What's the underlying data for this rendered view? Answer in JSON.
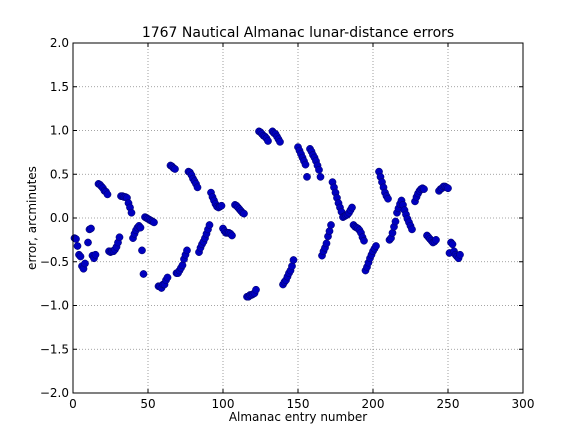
{
  "chart_data": {
    "type": "scatter",
    "title": "1767 Nautical Almanac lunar-distance errors",
    "xlabel": "Almanac entry number",
    "ylabel": "error, arcminutes",
    "xlim": [
      0,
      300
    ],
    "ylim": [
      -2.0,
      2.0
    ],
    "xticks": [
      0,
      50,
      100,
      150,
      200,
      250,
      300
    ],
    "xtick_labels": [
      "0",
      "50",
      "100",
      "150",
      "200",
      "250",
      "300"
    ],
    "yticks": [
      -2.0,
      -1.5,
      -1.0,
      -0.5,
      0.0,
      0.5,
      1.0,
      1.5,
      2.0
    ],
    "ytick_labels": [
      "−2.0",
      "−1.5",
      "−1.0",
      "−0.5",
      "0.0",
      "0.5",
      "1.0",
      "1.5",
      "2.0"
    ],
    "grid": true,
    "marker_color": "#0000bf",
    "points": [
      [
        1,
        -0.23
      ],
      [
        2,
        -0.24
      ],
      [
        3,
        -0.32
      ],
      [
        4,
        -0.42
      ],
      [
        5,
        -0.44
      ],
      [
        6,
        -0.55
      ],
      [
        7,
        -0.58
      ],
      [
        8,
        -0.52
      ],
      [
        10,
        -0.28
      ],
      [
        11,
        -0.13
      ],
      [
        12,
        -0.12
      ],
      [
        13,
        -0.43
      ],
      [
        14,
        -0.46
      ],
      [
        15,
        -0.42
      ],
      [
        17,
        0.39
      ],
      [
        18,
        0.38
      ],
      [
        19,
        0.36
      ],
      [
        20,
        0.34
      ],
      [
        21,
        0.31
      ],
      [
        22,
        0.3
      ],
      [
        23,
        0.27
      ],
      [
        24,
        -0.38
      ],
      [
        25,
        -0.39
      ],
      [
        26,
        -0.38
      ],
      [
        27,
        -0.38
      ],
      [
        28,
        -0.36
      ],
      [
        29,
        -0.33
      ],
      [
        30,
        -0.28
      ],
      [
        31,
        -0.22
      ],
      [
        32,
        0.25
      ],
      [
        33,
        0.25
      ],
      [
        34,
        0.24
      ],
      [
        35,
        0.24
      ],
      [
        36,
        0.23
      ],
      [
        37,
        0.17
      ],
      [
        38,
        0.12
      ],
      [
        39,
        0.06
      ],
      [
        40,
        -0.23
      ],
      [
        41,
        -0.18
      ],
      [
        42,
        -0.14
      ],
      [
        43,
        -0.11
      ],
      [
        44,
        -0.09
      ],
      [
        45,
        -0.11
      ],
      [
        46,
        -0.37
      ],
      [
        47,
        -0.64
      ],
      [
        48,
        0.01
      ],
      [
        49,
        0.0
      ],
      [
        50,
        -0.01
      ],
      [
        51,
        -0.02
      ],
      [
        52,
        -0.03
      ],
      [
        53,
        -0.04
      ],
      [
        54,
        -0.05
      ],
      [
        57,
        -0.78
      ],
      [
        58,
        -0.78
      ],
      [
        59,
        -0.8
      ],
      [
        60,
        -0.76
      ],
      [
        61,
        -0.76
      ],
      [
        62,
        -0.71
      ],
      [
        63,
        -0.68
      ],
      [
        65,
        0.6
      ],
      [
        66,
        0.59
      ],
      [
        67,
        0.57
      ],
      [
        68,
        0.56
      ],
      [
        69,
        -0.63
      ],
      [
        70,
        -0.63
      ],
      [
        71,
        -0.6
      ],
      [
        72,
        -0.57
      ],
      [
        73,
        -0.54
      ],
      [
        74,
        -0.47
      ],
      [
        75,
        -0.42
      ],
      [
        76,
        -0.37
      ],
      [
        77,
        0.53
      ],
      [
        78,
        0.52
      ],
      [
        79,
        0.49
      ],
      [
        80,
        0.45
      ],
      [
        81,
        0.42
      ],
      [
        82,
        0.39
      ],
      [
        83,
        0.35
      ],
      [
        84,
        -0.39
      ],
      [
        85,
        -0.34
      ],
      [
        86,
        -0.3
      ],
      [
        87,
        -0.27
      ],
      [
        88,
        -0.23
      ],
      [
        89,
        -0.18
      ],
      [
        90,
        -0.13
      ],
      [
        91,
        -0.08
      ],
      [
        92,
        0.29
      ],
      [
        93,
        0.24
      ],
      [
        94,
        0.2
      ],
      [
        95,
        0.16
      ],
      [
        96,
        0.13
      ],
      [
        97,
        0.12
      ],
      [
        98,
        0.13
      ],
      [
        99,
        0.14
      ],
      [
        100,
        -0.12
      ],
      [
        101,
        -0.15
      ],
      [
        102,
        -0.17
      ],
      [
        103,
        -0.17
      ],
      [
        104,
        -0.17
      ],
      [
        105,
        -0.18
      ],
      [
        106,
        -0.2
      ],
      [
        108,
        0.15
      ],
      [
        109,
        0.14
      ],
      [
        110,
        0.12
      ],
      [
        111,
        0.1
      ],
      [
        112,
        0.08
      ],
      [
        113,
        0.06
      ],
      [
        114,
        0.05
      ],
      [
        116,
        -0.9
      ],
      [
        117,
        -0.9
      ],
      [
        118,
        -0.88
      ],
      [
        119,
        -0.88
      ],
      [
        120,
        -0.87
      ],
      [
        121,
        -0.86
      ],
      [
        122,
        -0.82
      ],
      [
        124,
        0.99
      ],
      [
        125,
        0.98
      ],
      [
        126,
        0.96
      ],
      [
        127,
        0.94
      ],
      [
        128,
        0.93
      ],
      [
        129,
        0.91
      ],
      [
        130,
        0.88
      ],
      [
        133,
        0.99
      ],
      [
        134,
        0.97
      ],
      [
        135,
        0.96
      ],
      [
        136,
        0.93
      ],
      [
        137,
        0.9
      ],
      [
        138,
        0.87
      ],
      [
        140,
        -0.76
      ],
      [
        141,
        -0.73
      ],
      [
        142,
        -0.71
      ],
      [
        143,
        -0.67
      ],
      [
        144,
        -0.63
      ],
      [
        145,
        -0.6
      ],
      [
        146,
        -0.55
      ],
      [
        147,
        -0.48
      ],
      [
        150,
        0.81
      ],
      [
        151,
        0.77
      ],
      [
        152,
        0.73
      ],
      [
        153,
        0.69
      ],
      [
        154,
        0.65
      ],
      [
        155,
        0.61
      ],
      [
        156,
        0.47
      ],
      [
        158,
        0.79
      ],
      [
        159,
        0.76
      ],
      [
        160,
        0.72
      ],
      [
        161,
        0.69
      ],
      [
        162,
        0.65
      ],
      [
        163,
        0.6
      ],
      [
        164,
        0.55
      ],
      [
        165,
        0.47
      ],
      [
        166,
        -0.43
      ],
      [
        167,
        -0.38
      ],
      [
        168,
        -0.34
      ],
      [
        169,
        -0.29
      ],
      [
        170,
        -0.21
      ],
      [
        171,
        -0.15
      ],
      [
        172,
        -0.08
      ],
      [
        173,
        0.41
      ],
      [
        174,
        0.35
      ],
      [
        175,
        0.29
      ],
      [
        176,
        0.23
      ],
      [
        177,
        0.17
      ],
      [
        178,
        0.12
      ],
      [
        179,
        0.07
      ],
      [
        180,
        0.01
      ],
      [
        181,
        0.02
      ],
      [
        182,
        0.03
      ],
      [
        183,
        0.04
      ],
      [
        184,
        0.06
      ],
      [
        185,
        0.09
      ],
      [
        186,
        0.12
      ],
      [
        187,
        -0.08
      ],
      [
        188,
        -0.1
      ],
      [
        189,
        -0.11
      ],
      [
        190,
        -0.12
      ],
      [
        191,
        -0.14
      ],
      [
        192,
        -0.17
      ],
      [
        193,
        -0.22
      ],
      [
        194,
        -0.26
      ],
      [
        195,
        -0.6
      ],
      [
        196,
        -0.56
      ],
      [
        197,
        -0.51
      ],
      [
        198,
        -0.46
      ],
      [
        199,
        -0.42
      ],
      [
        200,
        -0.38
      ],
      [
        201,
        -0.35
      ],
      [
        202,
        -0.32
      ],
      [
        204,
        0.53
      ],
      [
        205,
        0.47
      ],
      [
        206,
        0.41
      ],
      [
        207,
        0.35
      ],
      [
        208,
        0.29
      ],
      [
        209,
        0.25
      ],
      [
        210,
        0.22
      ],
      [
        211,
        -0.25
      ],
      [
        212,
        -0.23
      ],
      [
        213,
        -0.17
      ],
      [
        214,
        -0.1
      ],
      [
        215,
        -0.04
      ],
      [
        216,
        0.06
      ],
      [
        217,
        0.11
      ],
      [
        218,
        0.16
      ],
      [
        219,
        0.2
      ],
      [
        220,
        0.15
      ],
      [
        221,
        0.09
      ],
      [
        222,
        0.04
      ],
      [
        223,
        -0.01
      ],
      [
        224,
        -0.05
      ],
      [
        225,
        -0.09
      ],
      [
        226,
        -0.13
      ],
      [
        228,
        0.19
      ],
      [
        229,
        0.24
      ],
      [
        230,
        0.28
      ],
      [
        231,
        0.31
      ],
      [
        232,
        0.33
      ],
      [
        233,
        0.34
      ],
      [
        234,
        0.33
      ],
      [
        236,
        -0.2
      ],
      [
        237,
        -0.22
      ],
      [
        238,
        -0.24
      ],
      [
        239,
        -0.26
      ],
      [
        240,
        -0.28
      ],
      [
        241,
        -0.27
      ],
      [
        242,
        -0.25
      ],
      [
        244,
        0.31
      ],
      [
        245,
        0.33
      ],
      [
        246,
        0.34
      ],
      [
        247,
        0.36
      ],
      [
        248,
        0.36
      ],
      [
        249,
        0.35
      ],
      [
        250,
        0.34
      ],
      [
        251,
        -0.4
      ],
      [
        252,
        -0.28
      ],
      [
        253,
        -0.3
      ],
      [
        254,
        -0.38
      ],
      [
        255,
        -0.42
      ],
      [
        256,
        -0.44
      ],
      [
        257,
        -0.46
      ],
      [
        258,
        -0.42
      ]
    ]
  }
}
